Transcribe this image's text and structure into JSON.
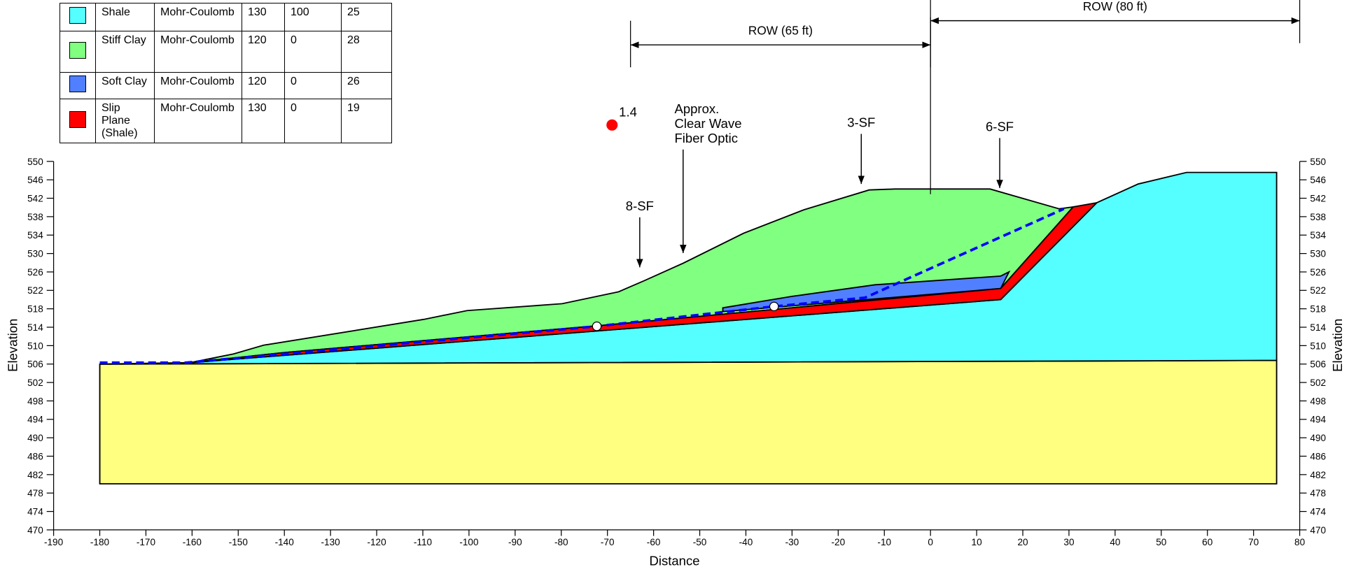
{
  "chart_data": {
    "type": "slope-section",
    "x_label": "Distance",
    "y_label": "Elevation",
    "xlim": [
      -190,
      80
    ],
    "xticks": [
      -190,
      -180,
      -170,
      -160,
      -150,
      -140,
      -130,
      -120,
      -110,
      -100,
      -90,
      -80,
      -70,
      -60,
      -50,
      -40,
      -30,
      -20,
      -10,
      0,
      10,
      20,
      30,
      40,
      50,
      60,
      70,
      80
    ],
    "ylim": [
      470,
      550
    ],
    "yticks": [
      470,
      474,
      478,
      482,
      486,
      490,
      494,
      498,
      502,
      506,
      510,
      514,
      518,
      522,
      526,
      530,
      534,
      538,
      542,
      546,
      550
    ],
    "materials": [
      {
        "color": "#ffff80",
        "x": [
          -180,
          75,
          75,
          -180
        ],
        "y": [
          506,
          506.8,
          480,
          480
        ]
      },
      {
        "name": "Shale",
        "color": "#55ffff",
        "strength": "Mohr-Coulomb",
        "unit_weight": 130,
        "cohesion": 100,
        "phi": 25,
        "x": [
          -180,
          75,
          75,
          55.5,
          45,
          36,
          15.2,
          -160.4
        ],
        "y": [
          506,
          506.8,
          547.6,
          547.6,
          545.1,
          541,
          520,
          506.3
        ]
      },
      {
        "name": "Stiff Clay",
        "color": "#80ff80",
        "strength": "Mohr-Coulomb",
        "unit_weight": 120,
        "cohesion": 0,
        "phi": 28,
        "x": [
          -160.4,
          -151,
          -144.5,
          -109.8,
          -100.4,
          -85.4,
          -79.8,
          -67.6,
          -62,
          -53.6,
          -40.5,
          -27.4,
          -13.3,
          -7.7,
          12.9,
          27.9,
          30.9,
          15.2,
          -70,
          -140
        ],
        "y": [
          506.3,
          508.2,
          510.1,
          515.7,
          517.6,
          518.7,
          519.1,
          521.7,
          524.1,
          527.9,
          534.4,
          539.5,
          543.8,
          544,
          544,
          539.7,
          540.1,
          522.4,
          514.5,
          508.5
        ]
      },
      {
        "name": "Soft Clay",
        "color": "#5080ff",
        "strength": "Mohr-Coulomb",
        "unit_weight": 120,
        "cohesion": 0,
        "phi": 26,
        "x": [
          -45,
          -30,
          -12,
          15.2,
          17,
          15.2,
          -45
        ],
        "y": [
          518.2,
          520.7,
          523.2,
          525.1,
          526,
          522.4,
          517.4
        ]
      },
      {
        "name": "Slip Plane (Shale)",
        "color": "#ff0000",
        "strength": "Mohr-Coulomb",
        "unit_weight": 130,
        "cohesion": 0,
        "phi": 19,
        "x": [
          -160.4,
          15.2,
          36,
          30.9,
          15.2,
          -70,
          -140
        ],
        "y": [
          506.3,
          520,
          541,
          540.1,
          522.4,
          514.5,
          508.5
        ]
      }
    ],
    "slip_surface": {
      "color": "#0000ff",
      "x": [
        -180,
        -161.3,
        -72.3,
        -33.9,
        -14.2,
        28.9
      ],
      "y": [
        506.3,
        506.3,
        514.2,
        518.5,
        520.4,
        539.7
      ]
    },
    "factor_of_safety": {
      "value": 1.4,
      "x": -69,
      "y": 557.9,
      "color": "#ff0000"
    },
    "annotations": [
      {
        "lines": [
          "8-SF"
        ],
        "x": -63,
        "y": 527
      },
      {
        "lines": [
          "Approx.",
          "Clear Wave",
          "Fiber Optic"
        ],
        "x": -53.6,
        "y": 530.1
      },
      {
        "lines": [
          "3-SF"
        ],
        "x": -15,
        "y": 545.1
      },
      {
        "lines": [
          "6-SF"
        ],
        "x": 15,
        "y": 544.2
      }
    ],
    "dimensions": [
      {
        "label": "ROW (65 ft)",
        "x": [
          -65,
          0
        ]
      },
      {
        "label": "ROW (80 ft)",
        "x": [
          0,
          80
        ]
      }
    ]
  }
}
